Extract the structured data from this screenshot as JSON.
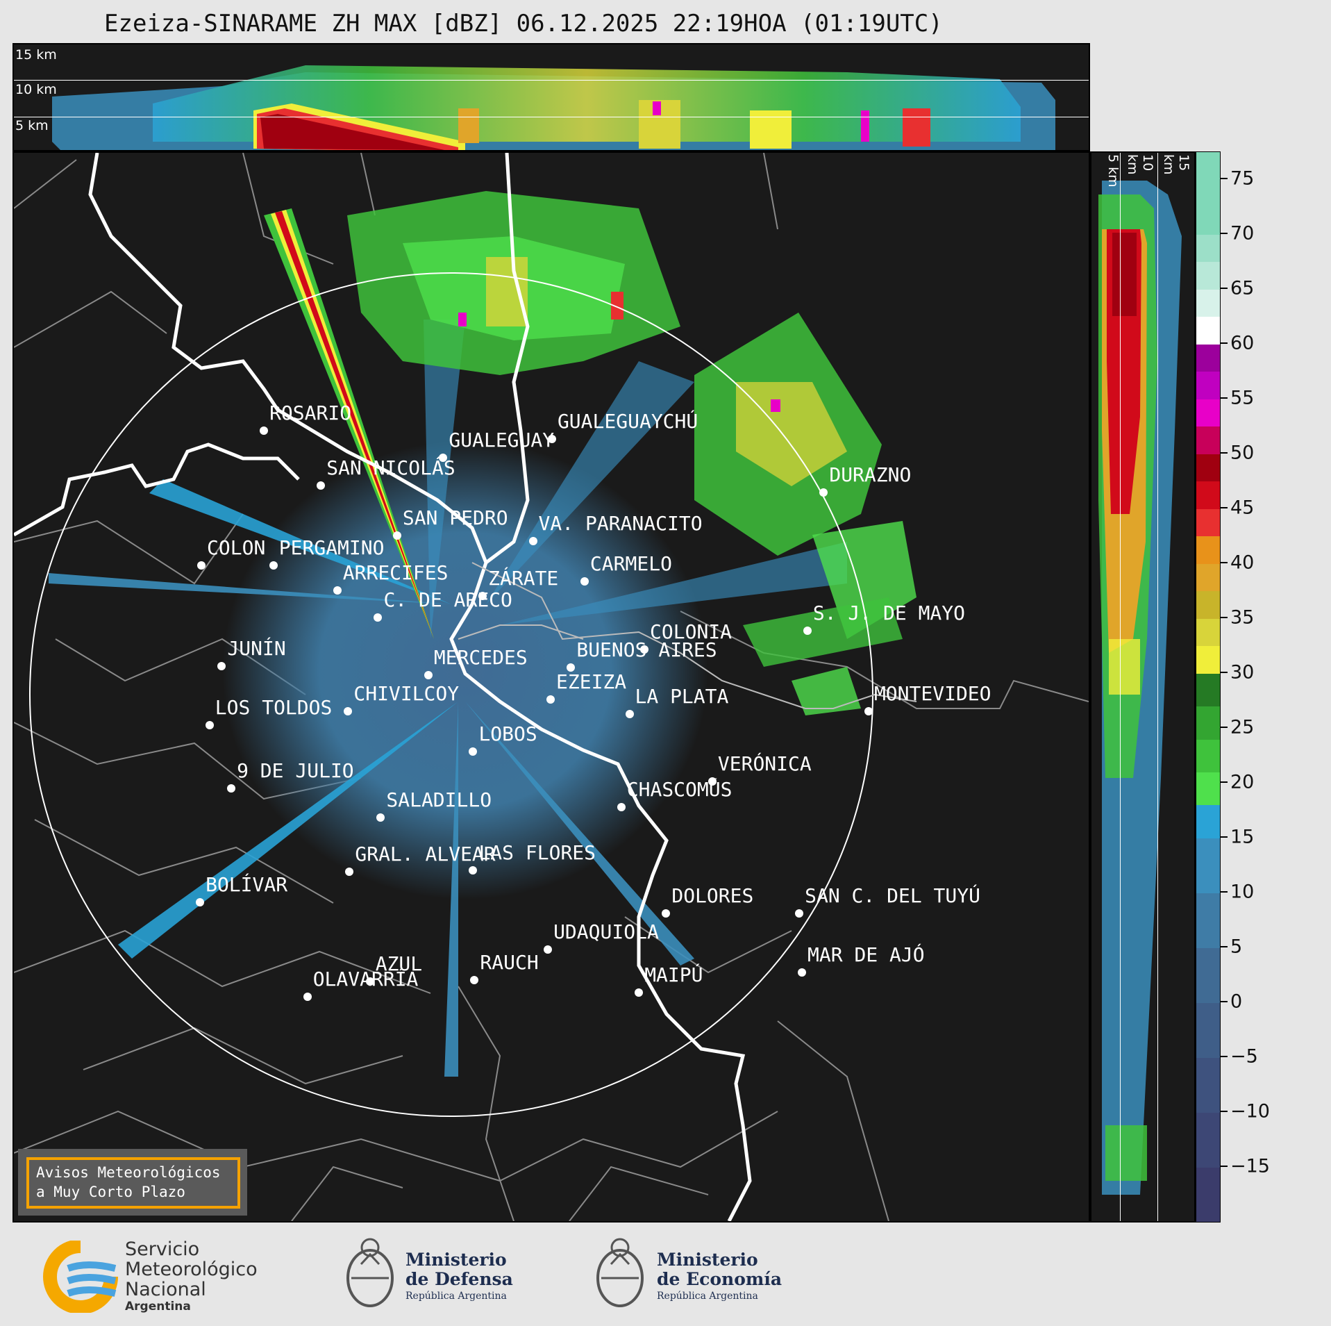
{
  "title": "Ezeiza-SINARAME ZH MAX [dBZ] 06.12.2025 22:19HOA (01:19UTC)",
  "top_panel": {
    "height_labels": [
      "15 km",
      "10 km",
      "5 km"
    ]
  },
  "side_panel": {
    "height_labels": [
      "5 km",
      "10 km",
      "15 km"
    ]
  },
  "colorbar": {
    "unit": "dBZ",
    "min": -20,
    "max": 77.5,
    "ticks": [
      "75",
      "70",
      "65",
      "60",
      "55",
      "50",
      "45",
      "40",
      "35",
      "30",
      "25",
      "20",
      "15",
      "10",
      "5",
      "0",
      "−5",
      "−10",
      "−15"
    ],
    "tick_values": [
      75,
      70,
      65,
      60,
      55,
      50,
      45,
      40,
      35,
      30,
      25,
      20,
      15,
      10,
      5,
      0,
      -5,
      -10,
      -15
    ],
    "bands": [
      {
        "from": -20,
        "to": -15,
        "color": "#3b3c6b"
      },
      {
        "from": -15,
        "to": -10,
        "color": "#3d4775"
      },
      {
        "from": -10,
        "to": -5,
        "color": "#3e527e"
      },
      {
        "from": -5,
        "to": 0,
        "color": "#3f5e88"
      },
      {
        "from": 0,
        "to": 5,
        "color": "#406b94"
      },
      {
        "from": 5,
        "to": 10,
        "color": "#3f7ca6"
      },
      {
        "from": 10,
        "to": 15,
        "color": "#3b8fbd"
      },
      {
        "from": 15,
        "to": 18,
        "color": "#2aa3d6"
      },
      {
        "from": 18,
        "to": 21,
        "color": "#4fe04c"
      },
      {
        "from": 21,
        "to": 24,
        "color": "#3fc23c"
      },
      {
        "from": 24,
        "to": 27,
        "color": "#33a531"
      },
      {
        "from": 27,
        "to": 30,
        "color": "#257a24"
      },
      {
        "from": 30,
        "to": 32.5,
        "color": "#f0ee3a"
      },
      {
        "from": 32.5,
        "to": 35,
        "color": "#d8d43a"
      },
      {
        "from": 35,
        "to": 37.5,
        "color": "#c8b42a"
      },
      {
        "from": 37.5,
        "to": 40,
        "color": "#e0a52a"
      },
      {
        "from": 40,
        "to": 42.5,
        "color": "#e8921a"
      },
      {
        "from": 42.5,
        "to": 45,
        "color": "#e83030"
      },
      {
        "from": 45,
        "to": 47.5,
        "color": "#d10a1a"
      },
      {
        "from": 47.5,
        "to": 50,
        "color": "#a00010"
      },
      {
        "from": 50,
        "to": 52.5,
        "color": "#c8005a"
      },
      {
        "from": 52.5,
        "to": 55,
        "color": "#e800c8"
      },
      {
        "from": 55,
        "to": 57.5,
        "color": "#c000c0"
      },
      {
        "from": 57.5,
        "to": 60,
        "color": "#9c009c"
      },
      {
        "from": 60,
        "to": 62.5,
        "color": "#ffffff"
      },
      {
        "from": 62.5,
        "to": 65,
        "color": "#d8f2ea"
      },
      {
        "from": 65,
        "to": 67.5,
        "color": "#b8e8d8"
      },
      {
        "from": 67.5,
        "to": 70,
        "color": "#9cdfc8"
      },
      {
        "from": 70,
        "to": 77.5,
        "color": "#80d8b8"
      }
    ]
  },
  "cities": [
    {
      "name": "ROSARIO",
      "lon": -60.64,
      "lat": -32.95
    },
    {
      "name": "GUALEGUAYCHÚ",
      "lon": -58.52,
      "lat": -33.01
    },
    {
      "name": "GUALEGUAY",
      "lon": -59.32,
      "lat": -33.14
    },
    {
      "name": "SAN NICOLÁS",
      "lon": -60.22,
      "lat": -33.33
    },
    {
      "name": "DURAZNO",
      "lon": -56.52,
      "lat": -33.38
    },
    {
      "name": "SAN PEDRO",
      "lon": -59.66,
      "lat": -33.68
    },
    {
      "name": "VA. PARANACITO",
      "lon": -58.66,
      "lat": -33.72
    },
    {
      "name": "COLON",
      "lon": -61.1,
      "lat": -33.89
    },
    {
      "name": "PERGAMINO",
      "lon": -60.57,
      "lat": -33.89
    },
    {
      "name": "CARMELO",
      "lon": -58.28,
      "lat": -34.0
    },
    {
      "name": "ARRECIFES",
      "lon": -60.1,
      "lat": -34.06
    },
    {
      "name": "ZÁRATE",
      "lon": -59.03,
      "lat": -34.1
    },
    {
      "name": "S. J. DE MAYO",
      "lon": -56.64,
      "lat": -34.34
    },
    {
      "name": "C. DE ARECO",
      "lon": -59.8,
      "lat": -34.25
    },
    {
      "name": "COLONIA",
      "lon": -57.84,
      "lat": -34.47
    },
    {
      "name": "JUNÍN",
      "lon": -60.95,
      "lat": -34.59
    },
    {
      "name": "BUENOS AIRES",
      "lon": -58.38,
      "lat": -34.6
    },
    {
      "name": "MERCEDES",
      "lon": -59.43,
      "lat": -34.65
    },
    {
      "name": "MONTEVIDEO",
      "lon": -56.19,
      "lat": -34.9
    },
    {
      "name": "EZEIZA",
      "lon": -58.53,
      "lat": -34.82
    },
    {
      "name": "CHIVILCOY",
      "lon": -60.02,
      "lat": -34.9
    },
    {
      "name": "LA PLATA",
      "lon": -57.95,
      "lat": -34.92
    },
    {
      "name": "LOS TOLDOS",
      "lon": -61.04,
      "lat": -35.0
    },
    {
      "name": "LOBOS",
      "lon": -59.1,
      "lat": -35.18
    },
    {
      "name": "VERÓNICA",
      "lon": -57.34,
      "lat": -35.39
    },
    {
      "name": "9 DE JULIO",
      "lon": -60.88,
      "lat": -35.44
    },
    {
      "name": "CHASCOMÚS",
      "lon": -58.01,
      "lat": -35.57
    },
    {
      "name": "SALADILLO",
      "lon": -59.78,
      "lat": -35.64
    },
    {
      "name": "GRAL. ALVEAR",
      "lon": -60.01,
      "lat": -36.02
    },
    {
      "name": "LAS FLORES",
      "lon": -59.1,
      "lat": -36.01
    },
    {
      "name": "BOLÍVAR",
      "lon": -61.11,
      "lat": -36.23
    },
    {
      "name": "DOLORES",
      "lon": -57.68,
      "lat": -36.31
    },
    {
      "name": "SAN C. DEL TUYÚ",
      "lon": -56.7,
      "lat": -36.31
    },
    {
      "name": "UDAQUIOLA",
      "lon": -58.55,
      "lat": -36.56
    },
    {
      "name": "MAR DE AJÓ",
      "lon": -56.68,
      "lat": -36.72
    },
    {
      "name": "AZUL",
      "lon": -59.86,
      "lat": -36.78
    },
    {
      "name": "RAUCH",
      "lon": -59.09,
      "lat": -36.77
    },
    {
      "name": "OLAVARRÍA",
      "lon": -60.32,
      "lat": -36.89
    },
    {
      "name": "MAIPÚ",
      "lon": -57.88,
      "lat": -36.86
    }
  ],
  "avisos": {
    "line1": "Avisos Meteorológicos",
    "line2": "a Muy Corto Plazo"
  },
  "logos": {
    "smn": {
      "line1": "Servicio",
      "line2": "Meteorológico",
      "line3": "Nacional",
      "line4": "Argentina"
    },
    "defensa": {
      "line1": "Ministerio",
      "line2": "de Defensa",
      "line3": "República Argentina"
    },
    "economia": {
      "line1": "Ministerio",
      "line2": "de Economía",
      "line3": "República Argentina"
    }
  },
  "colors": {
    "background": "#1a1a1a",
    "coast": "#ffffff",
    "borders": "#8a8a8a",
    "accent": "#f5a200"
  }
}
